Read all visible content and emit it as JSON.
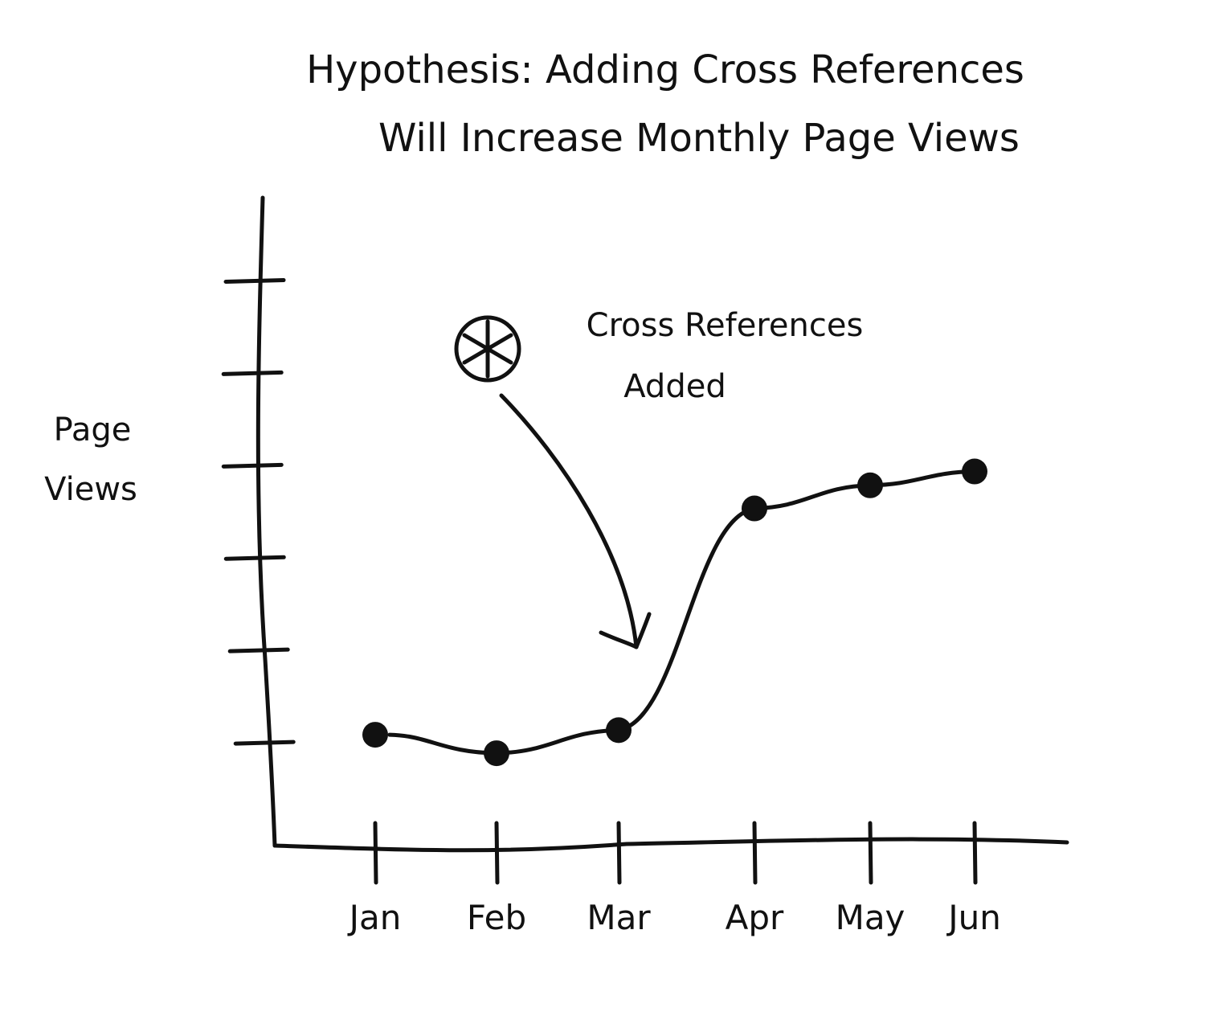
{
  "chart_data": {
    "type": "line",
    "title": "Hypothesis: Adding Cross References",
    "title_line2": "Will Increase Monthly Page Views",
    "ylabel_line1": "Page",
    "ylabel_line2": "Views",
    "xlabel": "",
    "categories": [
      "Jan",
      "Feb",
      "Mar",
      "Apr",
      "May",
      "Jun"
    ],
    "values": [
      1.0,
      0.8,
      1.05,
      3.45,
      3.7,
      3.85
    ],
    "ylim": [
      -0.2,
      6.3
    ],
    "y_ticks": [
      1,
      2,
      3,
      4,
      5,
      6,
      7
    ],
    "show_y_tick_labels": false,
    "grid": false,
    "colors": {
      "ink": "#111111",
      "background": "#ffffff"
    },
    "annotation": {
      "line1": "Cross References",
      "line2": "Added",
      "points_to_category": "Mar",
      "icon": "asterisk-circle-icon"
    }
  }
}
